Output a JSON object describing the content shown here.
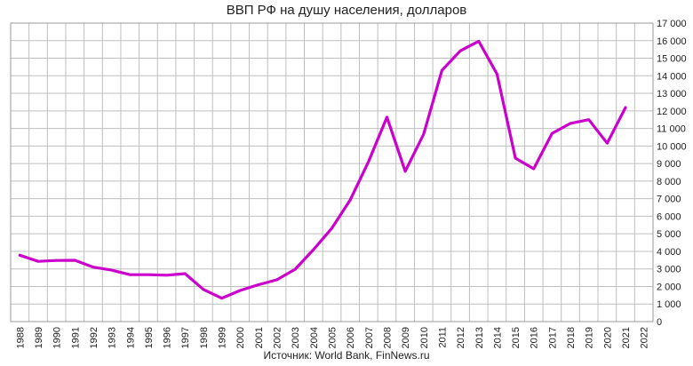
{
  "chart_data": {
    "type": "line",
    "title": "ВВП РФ на душу населения, долларов",
    "source": "Источник: World Bank, FinNews.ru",
    "xlabel": "",
    "ylabel": "",
    "categories": [
      "1988",
      "1989",
      "1990",
      "1991",
      "1992",
      "1993",
      "1994",
      "1995",
      "1996",
      "1997",
      "1998",
      "1999",
      "2000",
      "2001",
      "2002",
      "2003",
      "2004",
      "2005",
      "2006",
      "2007",
      "2008",
      "2009",
      "2010",
      "2011",
      "2012",
      "2013",
      "2014",
      "2015",
      "2016",
      "2017",
      "2018",
      "2019",
      "2020",
      "2021",
      "2022"
    ],
    "series": [
      {
        "values": [
          3780,
          3430,
          3480,
          3490,
          3100,
          2930,
          2670,
          2670,
          2640,
          2730,
          1830,
          1330,
          1770,
          2100,
          2380,
          2980,
          4100,
          5320,
          6930,
          9110,
          11640,
          8560,
          10670,
          14310,
          15420,
          15970,
          14100,
          9310,
          8700,
          10720,
          11290,
          11500,
          10160,
          12190,
          null
        ],
        "color": "#cc00cc"
      }
    ],
    "y_ticks": [
      "0",
      "1 000",
      "2 000",
      "3 000",
      "4 000",
      "5 000",
      "6 000",
      "7 000",
      "8 000",
      "9 000",
      "10 000",
      "11 000",
      "12 000",
      "13 000",
      "14 000",
      "15 000",
      "16 000",
      "17 000"
    ],
    "ylim": [
      0,
      17000
    ],
    "y_axis_side": "right",
    "grid": true,
    "legend": "none"
  }
}
